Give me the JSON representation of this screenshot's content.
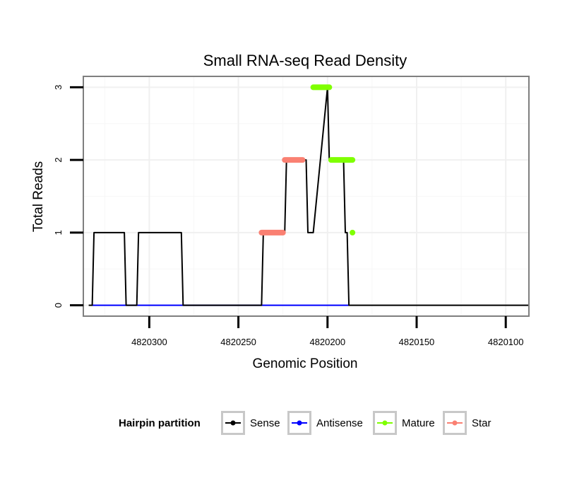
{
  "chart_data": {
    "type": "line",
    "title": "Small RNA-seq Read Density",
    "xlabel": "Genomic Position",
    "ylabel": "Total Reads",
    "x_reversed": true,
    "xlim": [
      4820337,
      4820087
    ],
    "ylim": [
      -0.15,
      3.15
    ],
    "x_ticks": [
      4820300,
      4820250,
      4820200,
      4820150,
      4820100
    ],
    "x_tick_labels": [
      "4820300",
      "4820250",
      "4820200",
      "4820150",
      "4820100"
    ],
    "y_ticks": [
      0,
      1,
      2,
      3
    ],
    "y_tick_labels": [
      "0",
      "1",
      "2",
      "3"
    ],
    "grid": true,
    "legend": {
      "title": "Hairpin partition",
      "position": "bottom",
      "entries": [
        {
          "label": "Sense",
          "color": "#000000"
        },
        {
          "label": "Antisense",
          "color": "#0000ff"
        },
        {
          "label": "Mature",
          "color": "#7fff00"
        },
        {
          "label": "Star",
          "color": "#fa8072"
        }
      ]
    },
    "series": [
      {
        "name": "Sense",
        "color": "#000000",
        "x": [
          4820334,
          4820332,
          4820331,
          4820314,
          4820313,
          4820311,
          4820307,
          4820306,
          4820282,
          4820281,
          4820237,
          4820236,
          4820224,
          4820223,
          4820222,
          4820212,
          4820211,
          4820209,
          4820208,
          4820200,
          4820199,
          4820191,
          4820190,
          4820189,
          4820188,
          4820087
        ],
        "y": [
          0,
          0,
          1,
          1,
          0,
          0,
          0,
          1,
          1,
          0,
          0,
          1,
          1,
          2,
          2,
          2,
          1,
          1,
          1,
          3,
          2,
          2,
          1,
          1,
          0,
          0
        ]
      },
      {
        "name": "Antisense",
        "color": "#0000ff",
        "x": [
          4820332,
          4820188
        ],
        "y": [
          0,
          0
        ]
      },
      {
        "name": "Star",
        "color": "#fa8072",
        "segments": [
          {
            "x": [
              4820237,
              4820225
            ],
            "y": [
              1,
              1
            ]
          },
          {
            "x": [
              4820224,
              4820214
            ],
            "y": [
              2,
              2
            ]
          }
        ]
      },
      {
        "name": "Mature",
        "color": "#7fff00",
        "segments": [
          {
            "x": [
              4820208,
              4820199
            ],
            "y": [
              3,
              3
            ]
          },
          {
            "x": [
              4820198,
              4820186
            ],
            "y": [
              2,
              2
            ]
          },
          {
            "x": [
              4820186,
              4820186
            ],
            "y": [
              1,
              1
            ]
          }
        ]
      }
    ]
  }
}
